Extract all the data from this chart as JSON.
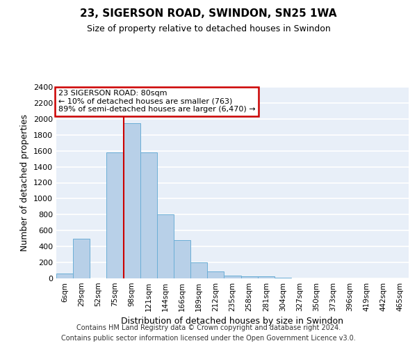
{
  "title1": "23, SIGERSON ROAD, SWINDON, SN25 1WA",
  "title2": "Size of property relative to detached houses in Swindon",
  "xlabel": "Distribution of detached houses by size in Swindon",
  "ylabel": "Number of detached properties",
  "footer1": "Contains HM Land Registry data © Crown copyright and database right 2024.",
  "footer2": "Contains public sector information licensed under the Open Government Licence v3.0.",
  "annotation_line1": "23 SIGERSON ROAD: 80sqm",
  "annotation_line2": "← 10% of detached houses are smaller (763)",
  "annotation_line3": "89% of semi-detached houses are larger (6,470) →",
  "bin_labels": [
    "6sqm",
    "29sqm",
    "52sqm",
    "75sqm",
    "98sqm",
    "121sqm",
    "144sqm",
    "166sqm",
    "189sqm",
    "212sqm",
    "235sqm",
    "258sqm",
    "281sqm",
    "304sqm",
    "327sqm",
    "350sqm",
    "373sqm",
    "396sqm",
    "419sqm",
    "442sqm",
    "465sqm"
  ],
  "bar_heights": [
    60,
    500,
    0,
    1580,
    1950,
    1580,
    800,
    480,
    200,
    90,
    35,
    30,
    25,
    5,
    3,
    3,
    2,
    2,
    2,
    1,
    0
  ],
  "bar_color": "#b8d0e8",
  "bar_edge_color": "#6baed6",
  "red_line_x": 3.5,
  "red_line_color": "#cc0000",
  "ylim": [
    0,
    2400
  ],
  "yticks": [
    0,
    200,
    400,
    600,
    800,
    1000,
    1200,
    1400,
    1600,
    1800,
    2000,
    2200,
    2400
  ],
  "bg_color": "#e8eff8",
  "grid_color": "#ffffff",
  "annotation_box_color": "#ffffff",
  "annotation_box_edge": "#cc0000",
  "title_fontsize": 11,
  "subtitle_fontsize": 9,
  "ylabel_fontsize": 9,
  "xlabel_fontsize": 9,
  "tick_fontsize": 8,
  "xtick_fontsize": 7.5,
  "footer_fontsize": 7
}
